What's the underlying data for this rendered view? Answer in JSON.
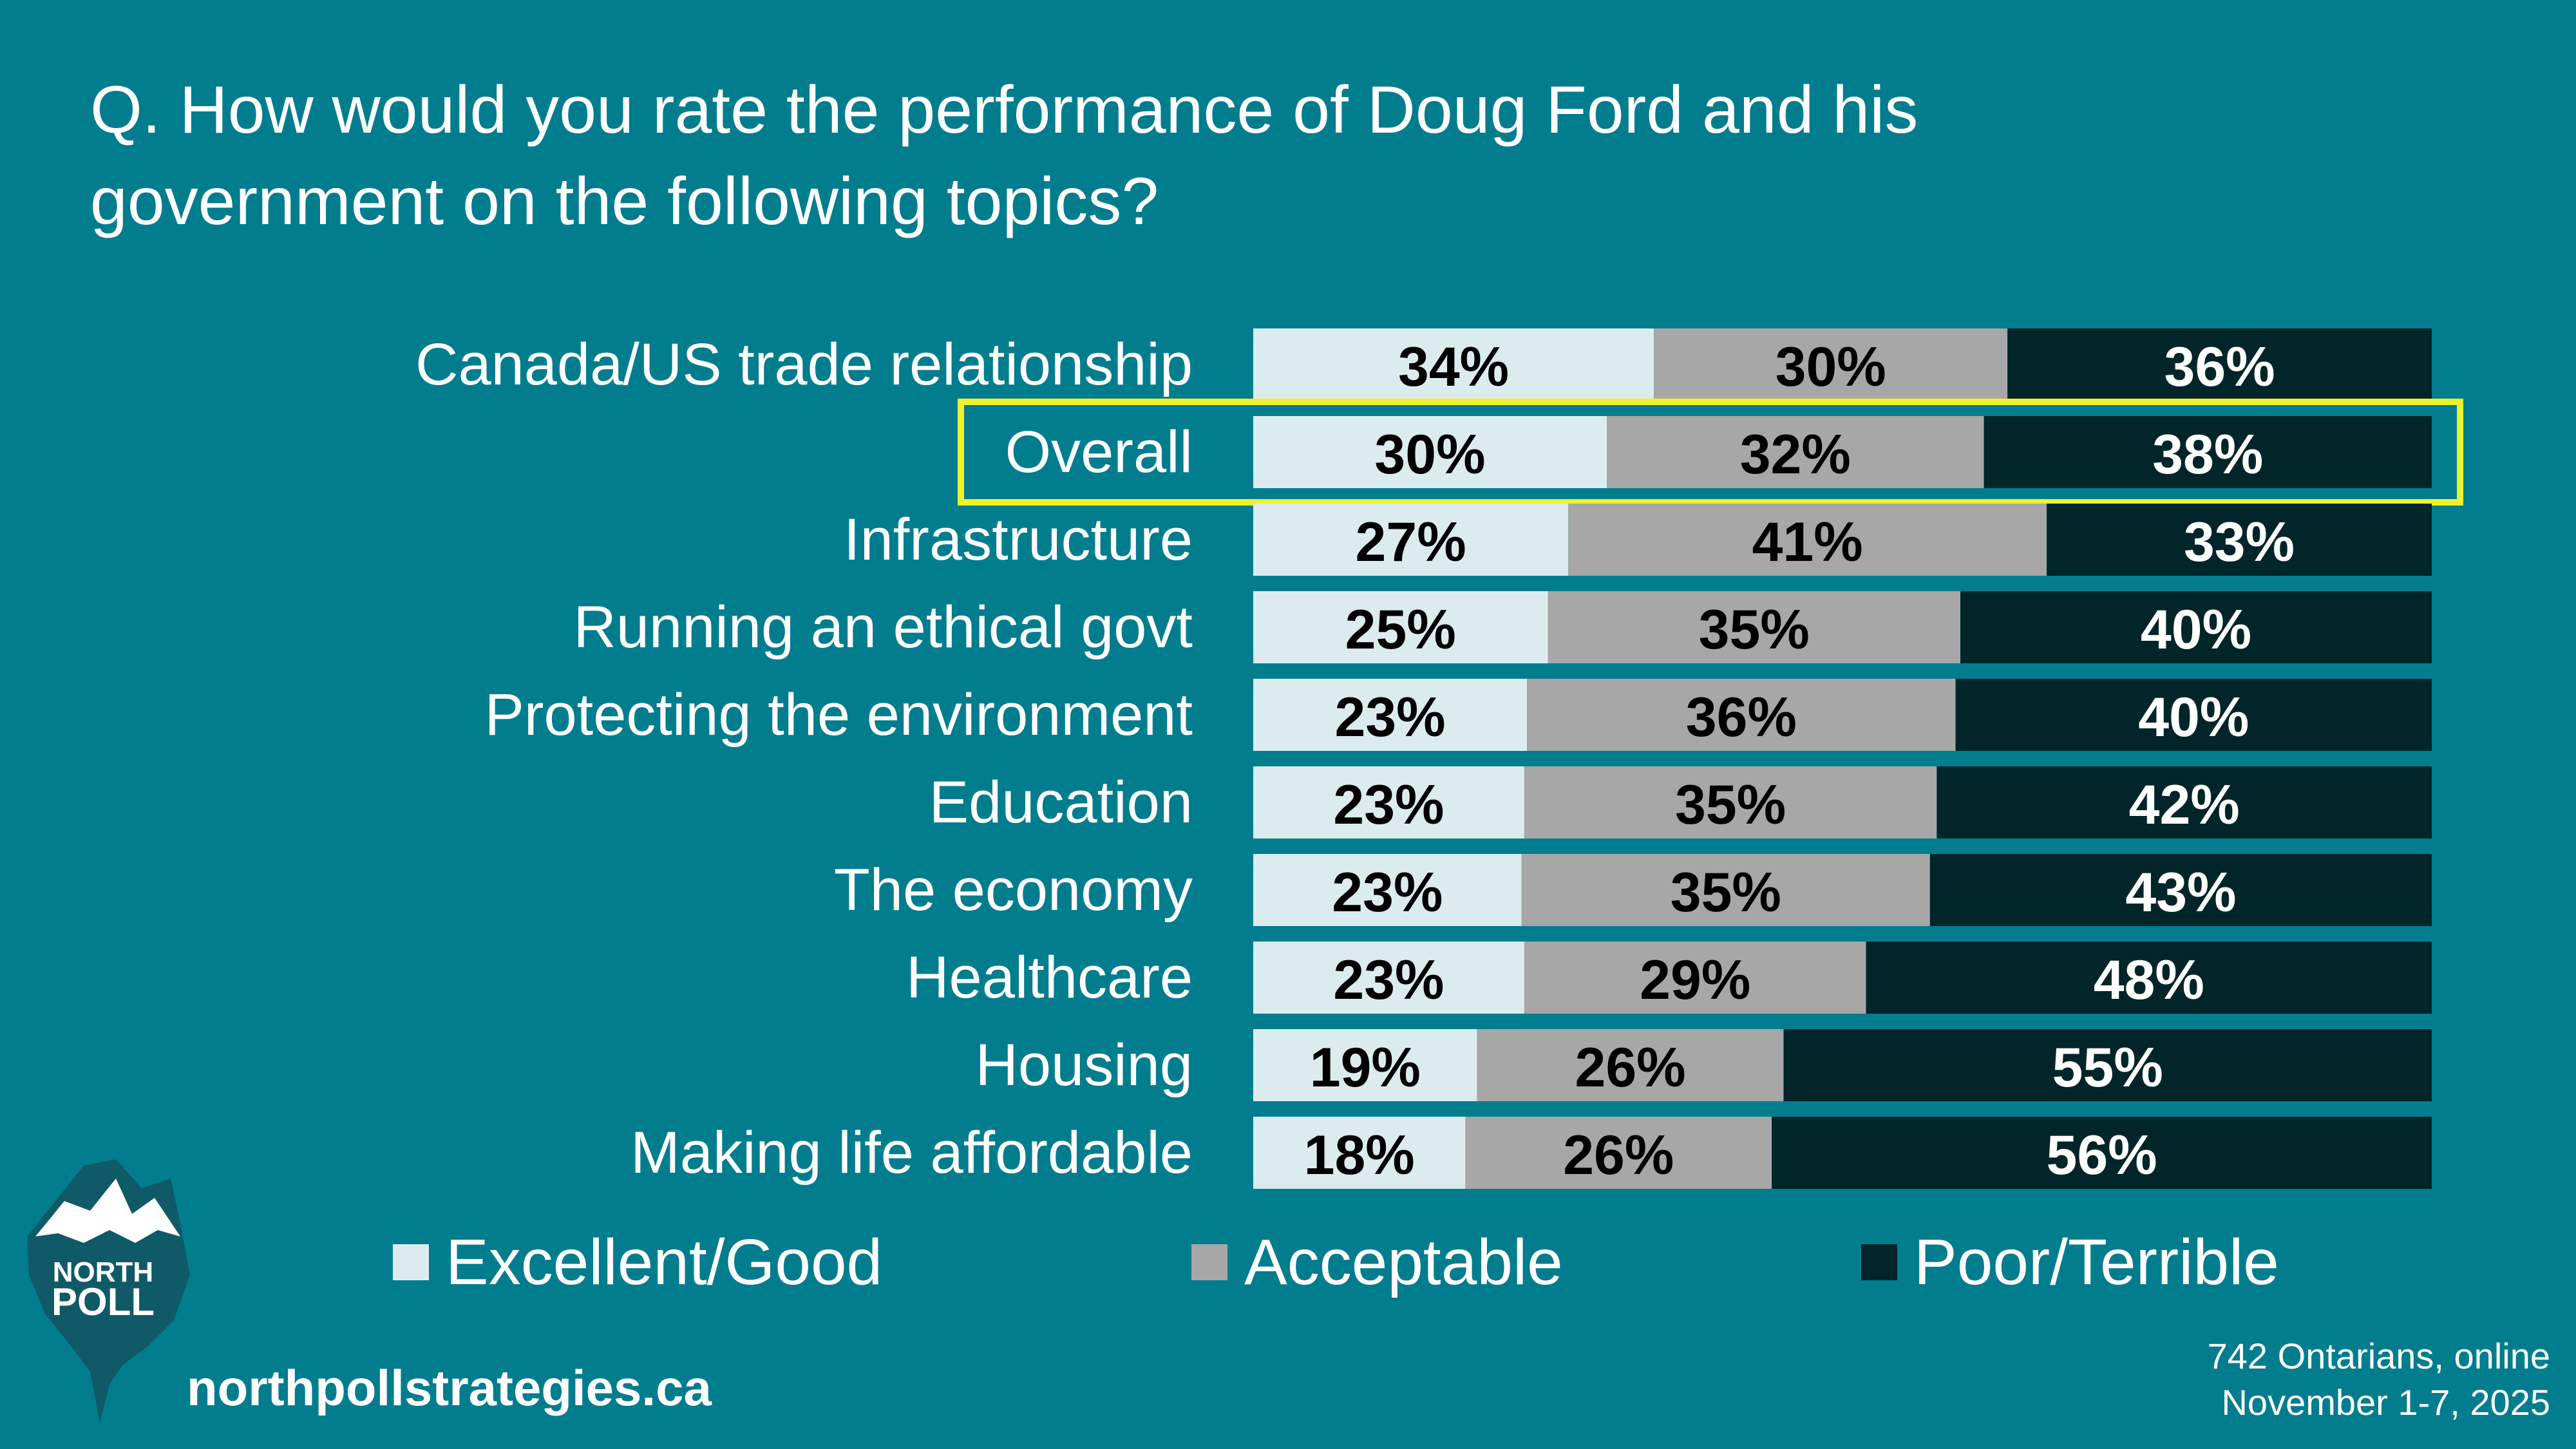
{
  "title": "Q. How would you rate the performance of Doug Ford and his government on the following topics?",
  "chart_data": {
    "type": "bar",
    "orientation": "horizontal",
    "stacked": true,
    "title": "Q. How would you rate the performance of Doug Ford and his government on the following topics?",
    "categories": [
      "Canada/US trade relationship",
      "Overall",
      "Infrastructure",
      "Running an ethical govt",
      "Protecting the environment",
      "Education",
      "The economy",
      "Healthcare",
      "Housing",
      "Making life affordable"
    ],
    "highlighted_category": "Overall",
    "series": [
      {
        "name": "Excellent/Good",
        "color": "#dcecee",
        "values": [
          34,
          30,
          27,
          25,
          23,
          23,
          23,
          23,
          19,
          18
        ]
      },
      {
        "name": "Acceptable",
        "color": "#a7a7a7",
        "values": [
          30,
          32,
          41,
          35,
          36,
          35,
          35,
          29,
          26,
          26
        ]
      },
      {
        "name": "Poor/Terrible",
        "color": "#022529",
        "values": [
          36,
          38,
          33,
          40,
          40,
          42,
          43,
          48,
          55,
          56
        ]
      }
    ],
    "value_format": "{v}%",
    "xlim": [
      0,
      100
    ],
    "legend_position": "bottom"
  },
  "colors": {
    "background": "#017d8e",
    "highlight": "#eef22b",
    "label_dark": "#000000",
    "label_light": "#ffffff"
  },
  "legend": {
    "items": [
      {
        "label": "Excellent/Good",
        "color": "#dcecee"
      },
      {
        "label": "Acceptable",
        "color": "#a7a7a7"
      },
      {
        "label": "Poor/Terrible",
        "color": "#022529"
      }
    ]
  },
  "brand": {
    "logo_line1": "NORTH",
    "logo_line2": "POLL",
    "website": "northpollstrategies.ca"
  },
  "footnote": {
    "line1": "742 Ontarians, online",
    "line2": "November 1-7, 2025"
  }
}
